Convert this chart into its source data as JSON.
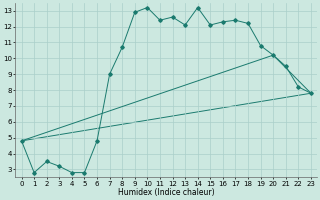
{
  "xlabel": "Humidex (Indice chaleur)",
  "bg_color": "#cce8e0",
  "line_color": "#1a7a6e",
  "grid_color": "#aacfca",
  "xlim": [
    -0.5,
    23.5
  ],
  "ylim": [
    2.5,
    13.5
  ],
  "xticks": [
    0,
    1,
    2,
    3,
    4,
    5,
    6,
    7,
    8,
    9,
    10,
    11,
    12,
    13,
    14,
    15,
    16,
    17,
    18,
    19,
    20,
    21,
    22,
    23
  ],
  "yticks": [
    3,
    4,
    5,
    6,
    7,
    8,
    9,
    10,
    11,
    12,
    13
  ],
  "line1_x": [
    0,
    1,
    2,
    3,
    4,
    5,
    6,
    7,
    8,
    9,
    10,
    11,
    12,
    13,
    14,
    15,
    16,
    17,
    18,
    19,
    20,
    21,
    22,
    23
  ],
  "line1_y": [
    4.8,
    2.8,
    3.5,
    3.2,
    2.8,
    2.8,
    4.8,
    9.0,
    10.7,
    12.9,
    13.2,
    12.4,
    12.6,
    12.1,
    13.2,
    12.1,
    12.3,
    12.4,
    12.2,
    10.8,
    10.2,
    9.5,
    8.2,
    7.8
  ],
  "line2_x": [
    0,
    20,
    23
  ],
  "line2_y": [
    4.8,
    10.2,
    7.8
  ],
  "line3_x": [
    0,
    23
  ],
  "line3_y": [
    4.8,
    7.8
  ]
}
